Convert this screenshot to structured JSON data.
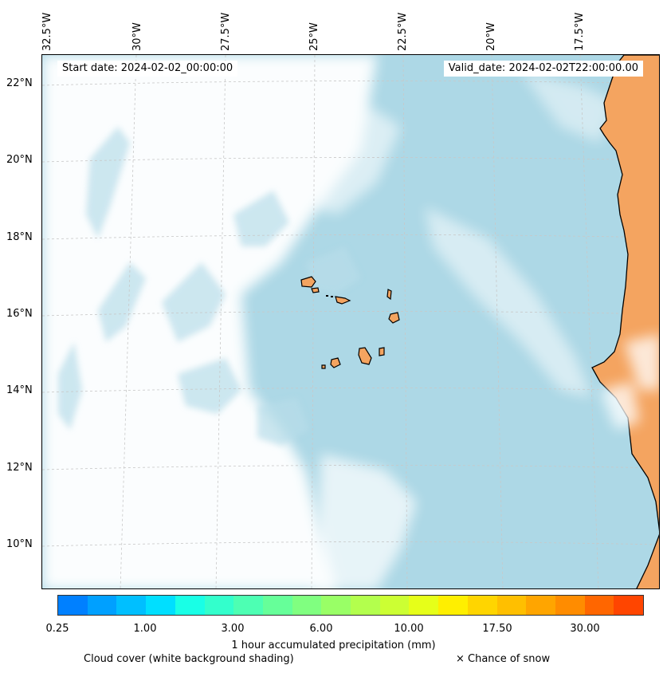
{
  "map": {
    "lon_labels": [
      "32.5°W",
      "30°W",
      "27.5°W",
      "25°W",
      "22.5°W",
      "20°W",
      "17.5°W"
    ],
    "lat_labels": [
      "22°N",
      "20°N",
      "18°N",
      "16°N",
      "14°N",
      "12°N",
      "10°N"
    ],
    "start_date": "Start date: 2024-02-02_00:00:00",
    "valid_date": "Valid_date: 2024-02-02T22:00:00.00",
    "colors": {
      "ocean": "#add8e6",
      "land": "#f4a460",
      "cloud": "#ffffff",
      "coastline": "#000000",
      "grid": "#c8c8c8"
    }
  },
  "colorbar": {
    "ticks": [
      "0.25",
      "1.00",
      "3.00",
      "6.00",
      "10.00",
      "17.50",
      "30.00"
    ],
    "colors": [
      "#0080ff",
      "#00a0ff",
      "#00bfff",
      "#00dfff",
      "#19ffe6",
      "#33ffcc",
      "#4dffb3",
      "#66ff99",
      "#80ff80",
      "#99ff66",
      "#b3ff4d",
      "#ccff33",
      "#e6ff19",
      "#ffef00",
      "#ffd500",
      "#ffbf00",
      "#ffa500",
      "#ff8c00",
      "#ff6600",
      "#ff4500"
    ],
    "label": "1 hour accumulated precipitation (mm)"
  },
  "footer": {
    "cloud_note": "Cloud cover (white background shading)",
    "snow_note": "× Chance of snow"
  }
}
